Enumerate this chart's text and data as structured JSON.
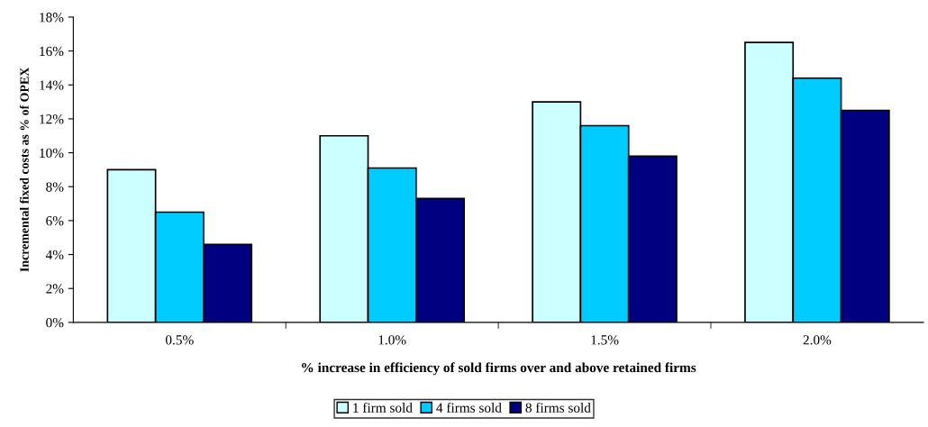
{
  "chart_data": {
    "type": "bar",
    "xlabel": "% increase in efficiency of sold firms over and above retained firms",
    "ylabel": "Incremental fixed costs as % of OPEX",
    "categories": [
      "0.5%",
      "1.0%",
      "1.5%",
      "2.0%"
    ],
    "series": [
      {
        "name": "1 firm sold",
        "color": "#ccffff",
        "values": [
          9.0,
          11.0,
          13.0,
          16.5
        ]
      },
      {
        "name": "4 firms sold",
        "color": "#00ccff",
        "values": [
          6.5,
          9.1,
          11.6,
          14.4
        ]
      },
      {
        "name": "8 firms sold",
        "color": "#000080",
        "values": [
          4.6,
          7.3,
          9.8,
          12.5
        ]
      }
    ],
    "ylim": [
      0,
      18
    ],
    "yticks": [
      {
        "value": 0,
        "label": "0%"
      },
      {
        "value": 2,
        "label": "2%"
      },
      {
        "value": 4,
        "label": "4%"
      },
      {
        "value": 6,
        "label": "6%"
      },
      {
        "value": 8,
        "label": "8%"
      },
      {
        "value": 10,
        "label": "10%"
      },
      {
        "value": 12,
        "label": "12%"
      },
      {
        "value": 14,
        "label": "14%"
      },
      {
        "value": 16,
        "label": "16%"
      },
      {
        "value": 18,
        "label": "18%"
      }
    ],
    "grid": false,
    "legend": "bottom"
  }
}
